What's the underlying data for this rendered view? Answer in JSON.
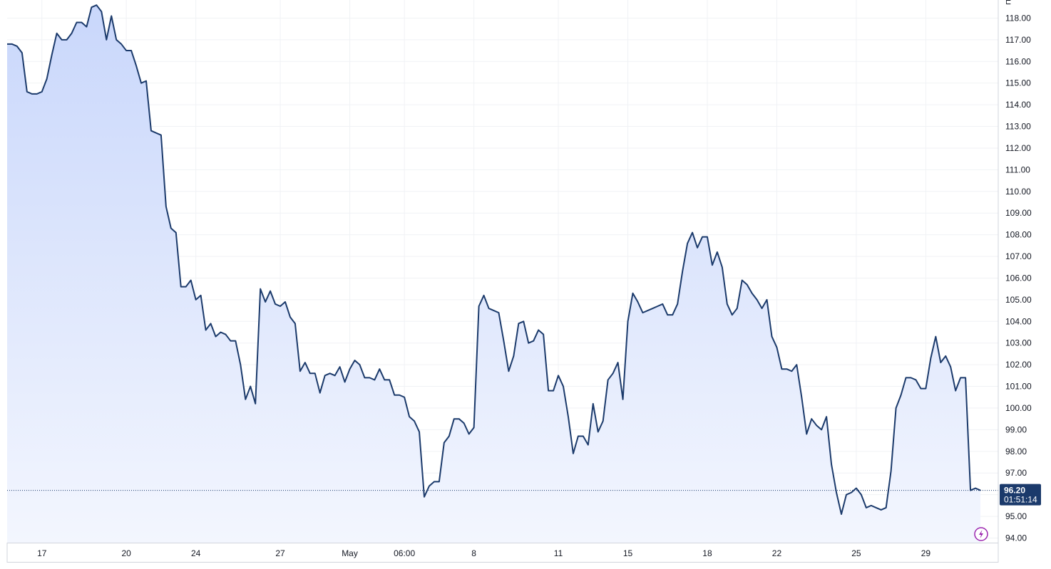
{
  "colors": {
    "line": "#1b3a6b",
    "fill_top": "#c9d7fb",
    "fill_bottom": "#f3f6fe",
    "grid": "#f0f2f5",
    "axis_text": "#131722",
    "price_label_bg": "#1b3a6b",
    "price_label_text": "#ffffff",
    "bolt": "#9c27b0"
  },
  "chart_data": {
    "type": "area",
    "title": "",
    "xlabel": "",
    "ylabel": "",
    "ylim": [
      93.7,
      118.6
    ],
    "y_ticks": [
      "94.00",
      "95.00",
      "96.00",
      "97.00",
      "98.00",
      "99.00",
      "100.00",
      "101.00",
      "102.00",
      "103.00",
      "104.00",
      "105.00",
      "106.00",
      "107.00",
      "108.00",
      "109.00",
      "110.00",
      "111.00",
      "112.00",
      "113.00",
      "114.00",
      "115.00",
      "116.00",
      "117.00",
      "118.00"
    ],
    "x_ticks": [
      {
        "label": "17",
        "index": 7
      },
      {
        "label": "20",
        "index": 24
      },
      {
        "label": "24",
        "index": 38
      },
      {
        "label": "27",
        "index": 55
      },
      {
        "label": "May",
        "index": 69
      },
      {
        "label": "06:00",
        "index": 80
      },
      {
        "label": "8",
        "index": 94
      },
      {
        "label": "11",
        "index": 111
      },
      {
        "label": "15",
        "index": 125
      },
      {
        "label": "18",
        "index": 141
      },
      {
        "label": "22",
        "index": 155
      },
      {
        "label": "25",
        "index": 171
      },
      {
        "label": "29",
        "index": 185
      }
    ],
    "series": [
      {
        "values": [
          116.8,
          116.8,
          116.7,
          116.4,
          114.6,
          114.5,
          114.5,
          114.6,
          115.2,
          116.3,
          117.3,
          117.0,
          117.0,
          117.3,
          117.8,
          117.8,
          117.6,
          118.5,
          118.6,
          118.3,
          117.0,
          118.1,
          117.0,
          116.8,
          116.5,
          116.5,
          115.8,
          115.0,
          115.1,
          112.8,
          112.7,
          112.6,
          109.3,
          108.3,
          108.1,
          105.6,
          105.6,
          105.9,
          105.0,
          105.2,
          103.6,
          103.9,
          103.3,
          103.5,
          103.4,
          103.1,
          103.1,
          102.0,
          100.4,
          101.0,
          100.2,
          105.5,
          104.9,
          105.4,
          104.8,
          104.7,
          104.9,
          104.2,
          103.9,
          101.7,
          102.1,
          101.6,
          101.6,
          100.7,
          101.5,
          101.6,
          101.5,
          101.9,
          101.2,
          101.8,
          102.2,
          102.0,
          101.4,
          101.4,
          101.3,
          101.8,
          101.3,
          101.3,
          100.6,
          100.6,
          100.5,
          99.6,
          99.4,
          98.9,
          95.9,
          96.4,
          96.6,
          96.6,
          98.4,
          98.7,
          99.5,
          99.5,
          99.3,
          98.8,
          99.1,
          104.7,
          105.2,
          104.6,
          104.5,
          104.4,
          103.1,
          101.7,
          102.4,
          103.9,
          104.0,
          103.0,
          103.1,
          103.6,
          103.4,
          100.8,
          100.8,
          101.5,
          101.0,
          99.6,
          97.9,
          98.7,
          98.7,
          98.3,
          100.2,
          98.9,
          99.4,
          101.3,
          101.6,
          102.1,
          100.4,
          104.0,
          105.3,
          104.9,
          104.4,
          104.5,
          104.6,
          104.7,
          104.8,
          104.3,
          104.3,
          104.8,
          106.3,
          107.6,
          108.1,
          107.4,
          107.9,
          107.9,
          106.6,
          107.2,
          106.5,
          104.8,
          104.3,
          104.6,
          105.9,
          105.7,
          105.3,
          105.0,
          104.6,
          105.0,
          103.3,
          102.8,
          101.8,
          101.8,
          101.7,
          102.0,
          100.5,
          98.8,
          99.5,
          99.2,
          99.0,
          99.6,
          97.4,
          96.1,
          95.1,
          96.0,
          96.1,
          96.3,
          96.0,
          95.4,
          95.5,
          95.4,
          95.3,
          95.4,
          97.1,
          100.0,
          100.6,
          101.4,
          101.4,
          101.3,
          100.9,
          100.9,
          102.3,
          103.3,
          102.1,
          102.4,
          101.9,
          100.8,
          101.4,
          101.4,
          96.2,
          96.3,
          96.2
        ]
      }
    ],
    "last_price": "96.20",
    "countdown": "01:51:14",
    "grid": true,
    "price_line": "dotted",
    "corner_glyph": "⊏"
  }
}
